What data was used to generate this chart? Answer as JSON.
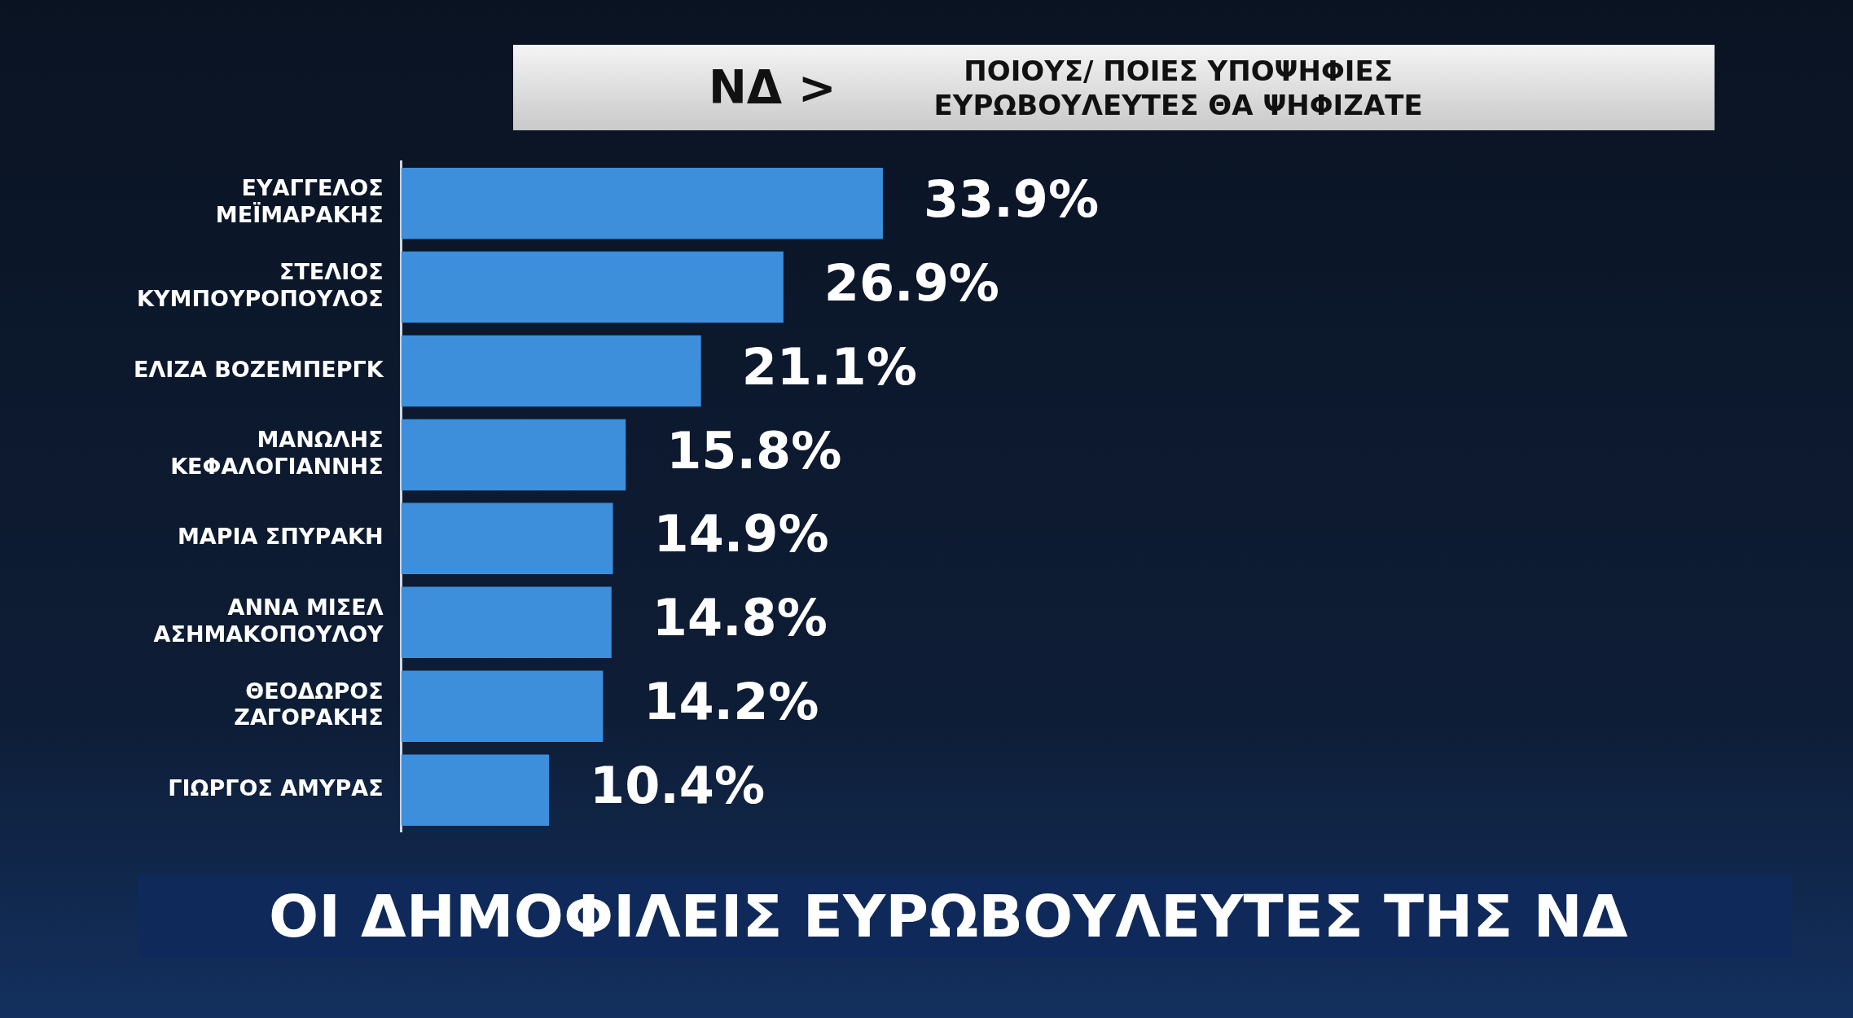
{
  "chart_data": {
    "type": "bar",
    "orientation": "horizontal",
    "title": "ΝΔ >",
    "subtitle": "ΠΟΙΟΥΣ/ ΠΟΙΕΣ ΥΠΟΨΗΦΙΕΣ ΕΥΡΩΒΟΥΛΕΥΤΕΣ ΘΑ ΨΗΦΙΖΑΤΕ",
    "categories": [
      "ΕΥΑΓΓΕΛΟΣ ΜΕΪΜΑΡΑΚΗΣ",
      "ΣΤΕΛΙΟΣ ΚΥΜΠΟΥΡΟΠΟΥΛΟΣ",
      "ΕΛΙΖΑ ΒΟΖΕΜΠΕΡΓΚ",
      "ΜΑΝΩΛΗΣ ΚΕΦΑΛΟΓΙΑΝΝΗΣ",
      "ΜΑΡΙΑ ΣΠΥΡΑΚΗ",
      "ΑΝΝΑ ΜΙΣΕΛ ΑΣΗΜΑΚΟΠΟΥΛΟΥ",
      "ΘΕΟΔΩΡΟΣ ΖΑΓΟΡΑΚΗΣ",
      "ΓΙΩΡΓΟΣ ΑΜΥΡΑΣ"
    ],
    "values": [
      33.9,
      26.9,
      21.1,
      15.8,
      14.9,
      14.8,
      14.2,
      10.4
    ],
    "value_labels": [
      "33.9%",
      "26.9%",
      "21.1%",
      "15.8%",
      "14.9%",
      "14.8%",
      "14.2%",
      "10.4%"
    ],
    "color": "#3d8fdc",
    "grid": false,
    "legend": false,
    "tick_labels": "y",
    "annotations": [
      "ΟΙ ΔΗΜΟΦΙΛΕΙΣ ΕΥΡΩΒΟΥΛΕΥΤΕΣ ΤΗΣ ΝΔ"
    ]
  }
}
